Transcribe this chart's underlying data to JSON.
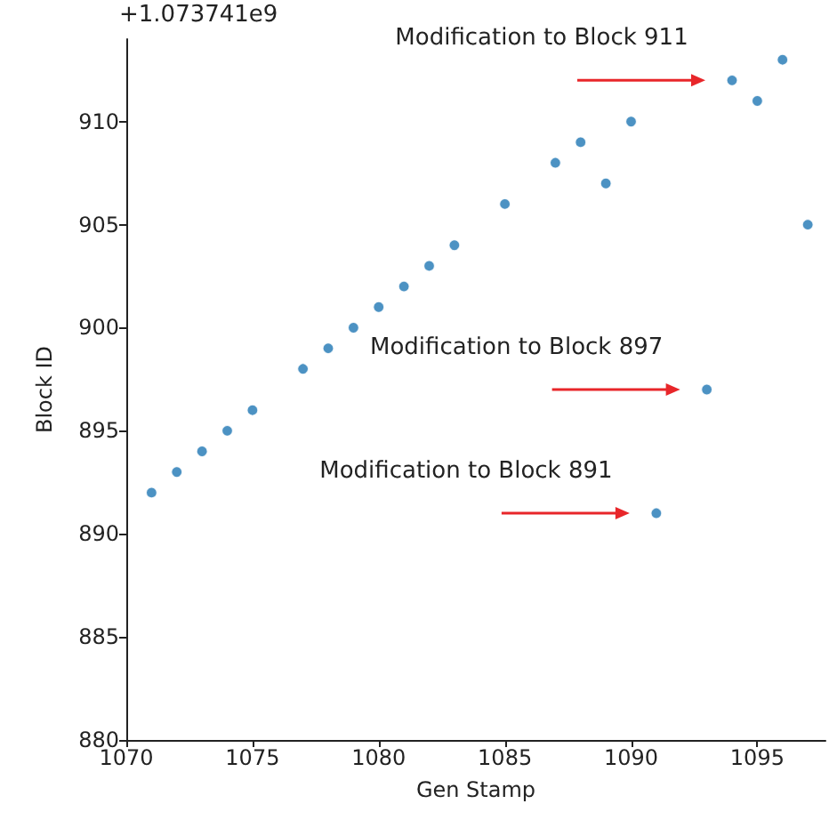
{
  "chart_data": {
    "type": "scatter",
    "xlabel": "Gen Stamp",
    "ylabel": "Block ID",
    "x": [
      1071,
      1072,
      1073,
      1074,
      1075,
      1077,
      1078,
      1079,
      1080,
      1081,
      1082,
      1083,
      1085,
      1087,
      1088,
      1089,
      1090,
      1091,
      1093,
      1094,
      1095,
      1096,
      1097
    ],
    "series": [
      {
        "color": "#1f77b4",
        "values": [
          892,
          893,
          894,
          895,
          896,
          898,
          899,
          900,
          901,
          902,
          903,
          904,
          906,
          908,
          909,
          907,
          910,
          891,
          897,
          912,
          911,
          913,
          905
        ]
      }
    ],
    "xlim": [
      1070,
      1097.7
    ],
    "xticks": [
      1070,
      1075,
      1080,
      1085,
      1090,
      1095
    ],
    "ylim": [
      880,
      914
    ],
    "yticks": [
      880,
      885,
      890,
      895,
      900,
      905,
      910
    ],
    "annotations": [
      "+1.073741e9",
      {
        "text": "Modification to Block 911",
        "x": 1094,
        "y": 912
      },
      {
        "text": "Modification to Block 897",
        "x": 1093,
        "y": 897
      },
      {
        "text": "Modification to Block 891",
        "x": 1091,
        "y": 891
      }
    ],
    "marker": "circle"
  }
}
